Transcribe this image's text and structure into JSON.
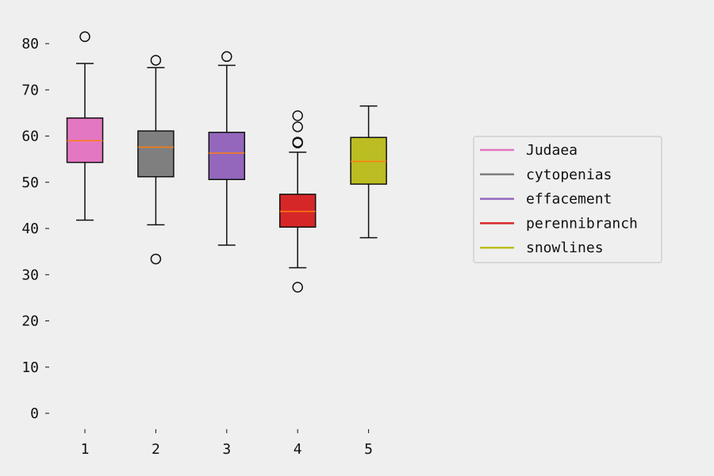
{
  "chart_data": {
    "type": "box",
    "categories": [
      "1",
      "2",
      "3",
      "4",
      "5"
    ],
    "yticks": [
      "0",
      "10",
      "20",
      "30",
      "40",
      "50",
      "60",
      "70",
      "80"
    ],
    "ylim": [
      -3,
      85
    ],
    "title": "",
    "xlabel": "",
    "ylabel": "",
    "grid": false,
    "legend_position": "center-right",
    "series": [
      {
        "name": "Judaea",
        "color": "#e377c2",
        "whisker_low": 41.8,
        "q1": 54.3,
        "median": 59.0,
        "q3": 63.9,
        "whisker_high": 75.7,
        "outliers": [
          81.5
        ]
      },
      {
        "name": "cytopenias",
        "color": "#7f7f7f",
        "whisker_low": 40.8,
        "q1": 51.2,
        "median": 57.6,
        "q3": 61.1,
        "whisker_high": 74.8,
        "outliers": [
          76.4,
          33.4
        ]
      },
      {
        "name": "effacement",
        "color": "#9467bd",
        "whisker_low": 36.4,
        "q1": 50.6,
        "median": 56.3,
        "q3": 60.8,
        "whisker_high": 75.3,
        "outliers": [
          77.2
        ]
      },
      {
        "name": "perennibranch",
        "color": "#d62728",
        "whisker_low": 31.5,
        "q1": 40.3,
        "median": 43.7,
        "q3": 47.4,
        "whisker_high": 56.5,
        "outliers": [
          64.4,
          62.0,
          58.5,
          58.7,
          27.3
        ]
      },
      {
        "name": "snowlines",
        "color": "#bcbd22",
        "whisker_low": 38.0,
        "q1": 49.6,
        "median": 54.5,
        "q3": 59.7,
        "whisker_high": 66.5,
        "outliers": []
      }
    ],
    "median_color": "#ff7f0e"
  }
}
